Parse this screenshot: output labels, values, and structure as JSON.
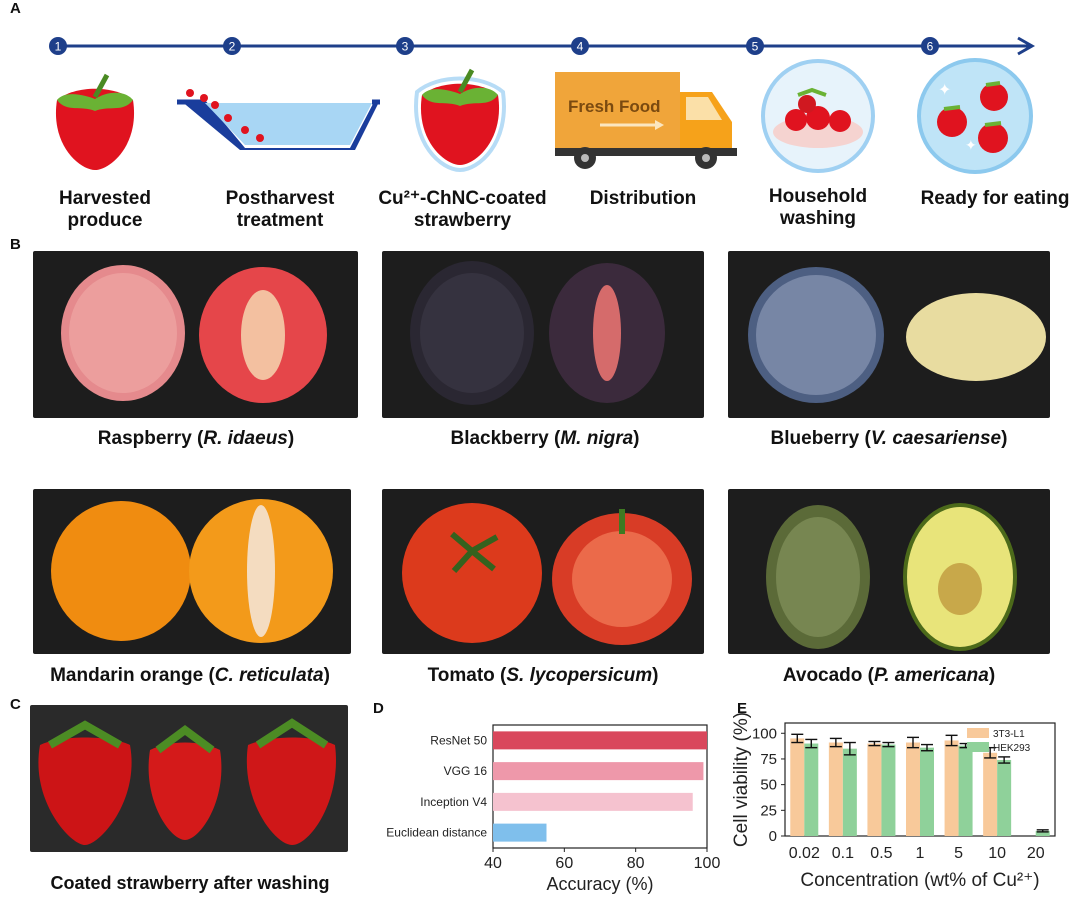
{
  "panels": {
    "a": "A",
    "b": "B",
    "c": "C",
    "d": "D",
    "e": "E"
  },
  "timeline": {
    "steps": [
      {
        "num": "1",
        "caption": [
          "Harvested",
          "produce"
        ]
      },
      {
        "num": "2",
        "caption": [
          "Postharvest",
          "treatment"
        ]
      },
      {
        "num": "3",
        "caption": [
          "Cu²⁺-ChNC-coated",
          "strawberry"
        ]
      },
      {
        "num": "4",
        "caption": [
          "Distribution"
        ]
      },
      {
        "num": "5",
        "caption": [
          "Household",
          "washing"
        ]
      },
      {
        "num": "6",
        "caption": [
          "Ready for eating"
        ]
      }
    ],
    "truck_text": "Fresh Food"
  },
  "fruits": [
    {
      "common": "Raspberry",
      "latin": "R. idaeus"
    },
    {
      "common": "Blackberry",
      "latin": "M. nigra"
    },
    {
      "common": "Blueberry",
      "latin": "V. caesariense"
    },
    {
      "common": "Mandarin orange",
      "latin": "C. reticulata"
    },
    {
      "common": "Tomato",
      "latin": "S. lycopersicum"
    },
    {
      "common": "Avocado",
      "latin": "P. americana"
    }
  ],
  "panel_c_caption": "Coated strawberry after washing",
  "chart_data": [
    {
      "type": "bar",
      "orientation": "horizontal",
      "categories": [
        "ResNet 50",
        "VGG 16",
        "Inception V4",
        "Euclidean distance"
      ],
      "values": [
        100,
        99,
        96,
        55
      ],
      "colors": [
        "#d9475c",
        "#ee98aa",
        "#f5c2cf",
        "#7fbfec"
      ],
      "xlabel": "Accuracy (%)",
      "xlim": [
        40,
        100
      ],
      "xticks": [
        40,
        60,
        80,
        100
      ]
    },
    {
      "type": "bar",
      "categories": [
        "0.02",
        "0.1",
        "0.5",
        "1",
        "5",
        "10",
        "20"
      ],
      "series": [
        {
          "name": "3T3-L1",
          "color": "#f8c99a",
          "values": [
            95,
            91,
            90,
            91,
            93,
            81,
            null
          ],
          "errors": [
            4,
            4,
            2,
            5,
            5,
            5,
            null
          ]
        },
        {
          "name": "HEK293",
          "color": "#8fd19a",
          "values": [
            90,
            85,
            89,
            86,
            88,
            74,
            5
          ],
          "errors": [
            4,
            6,
            2,
            3,
            2,
            3,
            1
          ]
        }
      ],
      "xlabel": "Concentration (wt% of Cu²⁺)",
      "ylabel": "Cell viability (%)",
      "ylim": [
        0,
        110
      ],
      "yticks": [
        0,
        25,
        50,
        75,
        100
      ],
      "legend": "top-right"
    }
  ]
}
